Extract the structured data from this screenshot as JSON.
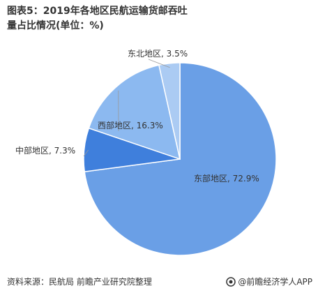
{
  "chart_data": {
    "type": "pie",
    "title": "图表5：2019年各地区民航运输货邮吞吐量占比情况(单位：%)",
    "categories": [
      "东部地区",
      "中部地区",
      "西部地区",
      "东北地区"
    ],
    "values": [
      72.9,
      7.3,
      16.3,
      3.5
    ],
    "value_labels": [
      "72.9%",
      "7.3%",
      "16.3%",
      "3.5%"
    ],
    "label_separator": ", ",
    "colors": [
      "#6a9fe6",
      "#3f7fdc",
      "#8cb9f0",
      "#abcbf3"
    ],
    "source": "资料来源：民航局 前瞻产业研究院整理",
    "brand": "@前瞻经济学人APP"
  }
}
